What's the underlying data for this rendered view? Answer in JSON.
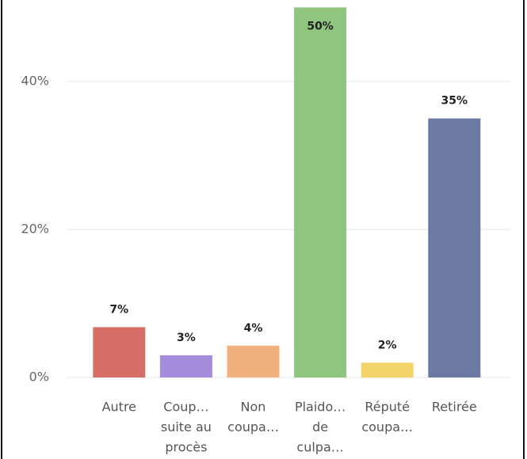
{
  "chart_data": {
    "type": "bar",
    "categories": [
      [
        "Autre"
      ],
      [
        "Coup…",
        "suite au",
        "procès"
      ],
      [
        "Non",
        "coupa…"
      ],
      [
        "Plaido…",
        "de",
        "culpa…"
      ],
      [
        "Réputé",
        "coupa…"
      ],
      [
        "Retirée"
      ]
    ],
    "values": [
      6.8,
      3,
      4.3,
      50,
      2,
      35
    ],
    "value_labels": [
      "7%",
      "3%",
      "4%",
      "50%",
      "2%",
      "35%"
    ],
    "colors": [
      "#d66f67",
      "#a58bdc",
      "#f0b07f",
      "#8fc57e",
      "#f2d46b",
      "#6b79a3"
    ],
    "ylim": [
      0,
      51
    ],
    "yticks": [
      {
        "value": 0,
        "label": "0%"
      },
      {
        "value": 20,
        "label": "20%"
      },
      {
        "value": 40,
        "label": "40%"
      }
    ],
    "grid": true
  }
}
